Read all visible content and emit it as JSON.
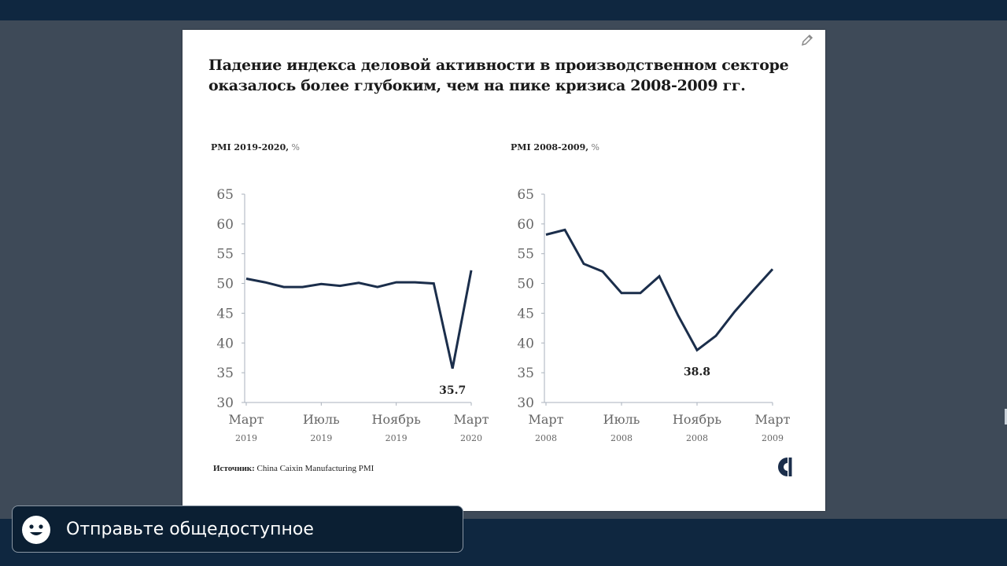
{
  "slide": {
    "headline_line1": "Падение индекса деловой активности в производственном секторе",
    "headline_line2": "оказалось более глубоким, чем на пике кризиса 2008-2009 гг.",
    "source_label": "Источник:",
    "source_text": " China Caixin Manufacturing PMI"
  },
  "icons": {
    "edit": "pencil-icon",
    "logo": "brand-logo",
    "emoji": "smiley-icon"
  },
  "chat": {
    "placeholder": "Отправьте общедоступное"
  },
  "colors": {
    "line": "#1b2e4b",
    "axis": "#aab2bc",
    "tick_text": "#666666",
    "background": "#3e4a58",
    "bars": "#0f2740"
  },
  "chart_data": [
    {
      "type": "line",
      "title": "PMI 2019-2020,",
      "unit": "%",
      "ylim": [
        30,
        65
      ],
      "yticks": [
        30,
        35,
        40,
        45,
        50,
        55,
        60,
        65
      ],
      "x_ticks": [
        {
          "label": "Март",
          "year": "2019",
          "x": 0
        },
        {
          "label": "Июль",
          "year": "2019",
          "x": 4
        },
        {
          "label": "Ноябрь",
          "year": "2019",
          "x": 8
        },
        {
          "label": "Март",
          "year": "2020",
          "x": 12
        }
      ],
      "x_range": [
        0,
        12
      ],
      "series": [
        {
          "x": [
            0,
            1,
            2,
            3,
            4,
            5,
            6,
            7,
            8,
            9,
            10,
            11,
            12
          ],
          "values": [
            50.8,
            50.2,
            49.4,
            49.4,
            49.9,
            49.6,
            50.1,
            49.4,
            50.2,
            50.2,
            50.0,
            35.7,
            52.2
          ]
        }
      ],
      "annotation": {
        "text": "35.7",
        "x": 11,
        "y": 35.7
      }
    },
    {
      "type": "line",
      "title": "PMI 2008-2009,",
      "unit": "%",
      "ylim": [
        30,
        65
      ],
      "yticks": [
        30,
        35,
        40,
        45,
        50,
        55,
        60,
        65
      ],
      "x_ticks": [
        {
          "label": "Март",
          "year": "2008",
          "x": 0
        },
        {
          "label": "Июль",
          "year": "2008",
          "x": 4
        },
        {
          "label": "Ноябрь",
          "year": "2008",
          "x": 8
        },
        {
          "label": "Март",
          "year": "2009",
          "x": 12
        }
      ],
      "x_range": [
        0,
        12
      ],
      "series": [
        {
          "x": [
            0,
            1,
            2,
            3,
            4,
            5,
            6,
            7,
            8,
            9,
            10,
            11,
            12
          ],
          "values": [
            58.2,
            59.0,
            53.3,
            52.0,
            48.4,
            48.4,
            51.2,
            44.6,
            38.8,
            41.2,
            45.3,
            48.9,
            52.4
          ]
        }
      ],
      "annotation": {
        "text": "38.8",
        "x": 8,
        "y": 38.8
      }
    }
  ]
}
